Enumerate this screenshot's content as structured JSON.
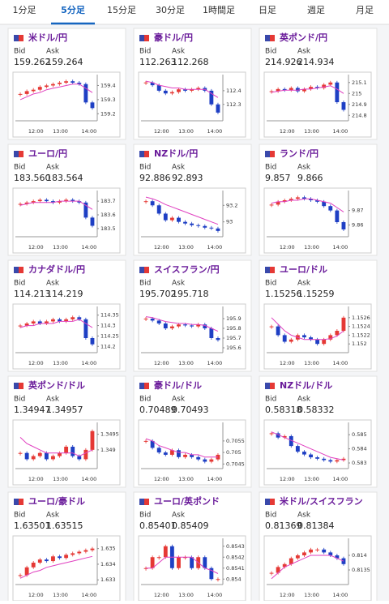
{
  "tabs": [
    "1分足",
    "5分足",
    "15分足",
    "30分足",
    "1時間足",
    "日足",
    "週足",
    "月足"
  ],
  "bid_label": "Bid",
  "ask_label": "Ask",
  "xticks": [
    "12:00",
    "13:00",
    "14:00"
  ],
  "candle_colors": {
    "up": "#e53935",
    "down": "#1e3fc4"
  },
  "pairs": [
    {
      "title": "米ドル/円",
      "bid": "159.262",
      "ask": "159.264",
      "chart": {
        "type": "candlestick",
        "ylim": [
          159.15,
          159.46
        ],
        "yticks": [
          159.4,
          159.3,
          159.2
        ],
        "values": [
          159.34,
          159.36,
          159.37,
          159.39,
          159.4,
          159.41,
          159.42,
          159.43,
          159.42,
          159.41,
          159.28,
          159.24
        ],
        "average": {
          "color": "#e040c0",
          "values": [
            159.3,
            159.32,
            159.34,
            159.35,
            159.37,
            159.38,
            159.39,
            159.4,
            159.41,
            159.41,
            159.38,
            159.35
          ]
        }
      }
    },
    {
      "title": "豪ドル/円",
      "bid": "112.263",
      "ask": "112.268",
      "chart": {
        "type": "candlestick",
        "ylim": [
          112.18,
          112.5
        ],
        "yticks": [
          112.4,
          112.3
        ],
        "values": [
          112.46,
          112.44,
          112.4,
          112.38,
          112.39,
          112.41,
          112.4,
          112.41,
          112.42,
          112.4,
          112.3,
          112.24
        ],
        "average": {
          "color": "#e040c0",
          "values": [
            112.47,
            112.46,
            112.44,
            112.43,
            112.42,
            112.42,
            112.41,
            112.41,
            112.41,
            112.41,
            112.38,
            112.35
          ]
        }
      }
    },
    {
      "title": "英ポンド/円",
      "bid": "214.926",
      "ask": "214.934",
      "chart": {
        "type": "candlestick",
        "ylim": [
          214.75,
          215.15
        ],
        "yticks": [
          215.1,
          215,
          214.9,
          214.8
        ],
        "values": [
          215.02,
          215.04,
          215.03,
          215.05,
          215.02,
          215.04,
          215.06,
          215.05,
          215.08,
          215.1,
          214.92,
          214.85
        ],
        "average": {
          "color": "#e040c0",
          "values": [
            215.01,
            215.02,
            215.03,
            215.03,
            215.03,
            215.04,
            215.04,
            215.05,
            215.06,
            215.07,
            215.04,
            215.0
          ]
        }
      }
    },
    {
      "title": "ユーロ/円",
      "bid": "183.560",
      "ask": "183.564",
      "chart": {
        "type": "candlestick",
        "ylim": [
          183.44,
          183.76
        ],
        "yticks": [
          183.7,
          183.6,
          183.5
        ],
        "values": [
          183.68,
          183.69,
          183.7,
          183.71,
          183.7,
          183.69,
          183.7,
          183.71,
          183.7,
          183.69,
          183.58,
          183.52
        ],
        "average": {
          "color": "#e040c0",
          "values": [
            183.67,
            183.68,
            183.69,
            183.69,
            183.69,
            183.69,
            183.7,
            183.7,
            183.7,
            183.7,
            183.67,
            183.64
          ]
        }
      }
    },
    {
      "title": "NZドル/円",
      "bid": "92.886",
      "ask": "92.893",
      "chart": {
        "type": "candlestick",
        "ylim": [
          92.82,
          93.35
        ],
        "yticks": [
          93.2,
          93
        ],
        "values": [
          93.25,
          93.2,
          93.1,
          93.02,
          93.05,
          93.0,
          92.98,
          92.96,
          92.95,
          92.93,
          92.92,
          92.89
        ],
        "average": {
          "color": "#e040c0",
          "values": [
            93.3,
            93.28,
            93.25,
            93.21,
            93.18,
            93.15,
            93.12,
            93.09,
            93.06,
            93.03,
            93.0,
            92.97
          ]
        }
      }
    },
    {
      "title": "ランド/円",
      "bid": "9.857",
      "ask": "9.866",
      "chart": {
        "type": "candlestick",
        "ylim": [
          9.852,
          9.882
        ],
        "yticks": [
          9.87,
          9.86
        ],
        "values": [
          9.874,
          9.876,
          9.877,
          9.878,
          9.879,
          9.878,
          9.877,
          9.876,
          9.873,
          9.87,
          9.862,
          9.857
        ],
        "average": {
          "color": "#e040c0",
          "values": [
            9.875,
            9.876,
            9.876,
            9.877,
            9.877,
            9.878,
            9.878,
            9.877,
            9.876,
            9.875,
            9.872,
            9.869
          ]
        }
      }
    },
    {
      "title": "カナダドル/円",
      "bid": "114.213",
      "ask": "114.219",
      "chart": {
        "type": "candlestick",
        "ylim": [
          114.17,
          114.38
        ],
        "yticks": [
          114.35,
          114.3,
          114.25,
          114.2
        ],
        "values": [
          114.3,
          114.31,
          114.32,
          114.31,
          114.32,
          114.33,
          114.32,
          114.33,
          114.34,
          114.33,
          114.24,
          114.21
        ],
        "average": {
          "color": "#e040c0",
          "values": [
            114.29,
            114.3,
            114.3,
            114.31,
            114.31,
            114.31,
            114.32,
            114.32,
            114.32,
            114.33,
            114.31,
            114.29
          ]
        }
      }
    },
    {
      "title": "スイスフラン/円",
      "bid": "195.702",
      "ask": "195.718",
      "chart": {
        "type": "candlestick",
        "ylim": [
          195.55,
          196.0
        ],
        "yticks": [
          195.9,
          195.8,
          195.7,
          195.6
        ],
        "values": [
          195.9,
          195.88,
          195.85,
          195.8,
          195.82,
          195.84,
          195.83,
          195.82,
          195.84,
          195.8,
          195.7,
          195.68
        ],
        "average": {
          "color": "#e040c0",
          "values": [
            195.92,
            195.91,
            195.89,
            195.87,
            195.86,
            195.85,
            195.85,
            195.84,
            195.84,
            195.83,
            195.8,
            195.77
          ]
        }
      }
    },
    {
      "title": "ユーロ/ドル",
      "bid": "1.15256",
      "ask": "1.15259",
      "chart": {
        "type": "candlestick",
        "ylim": [
          1.1518,
          1.1528
        ],
        "yticks": [
          1.1526,
          1.1524,
          1.1522,
          1.152
        ],
        "values": [
          1.1524,
          1.1522,
          1.15205,
          1.1521,
          1.1522,
          1.15215,
          1.1521,
          1.152,
          1.1521,
          1.1522,
          1.1523,
          1.1526
        ],
        "average": {
          "color": "#e040c0",
          "values": [
            1.1526,
            1.15245,
            1.1523,
            1.1522,
            1.15215,
            1.1521,
            1.1521,
            1.1521,
            1.1521,
            1.15212,
            1.15218,
            1.1523
          ]
        }
      }
    },
    {
      "title": "英ポンド/ドル",
      "bid": "1.34947",
      "ask": "1.34957",
      "chart": {
        "type": "candlestick",
        "ylim": [
          1.3484,
          1.3498
        ],
        "yticks": [
          1.3495,
          1.349
        ],
        "values": [
          1.3489,
          1.3487,
          1.3488,
          1.3489,
          1.3487,
          1.3488,
          1.3489,
          1.3491,
          1.3488,
          1.3487,
          1.349,
          1.3496
        ],
        "average": {
          "color": "#e040c0",
          "values": [
            1.3494,
            1.3492,
            1.3491,
            1.349,
            1.3489,
            1.3489,
            1.3489,
            1.3489,
            1.3489,
            1.3488,
            1.3489,
            1.349
          ]
        }
      }
    },
    {
      "title": "豪ドル/ドル",
      "bid": "0.70489",
      "ask": "0.70493",
      "chart": {
        "type": "candlestick",
        "ylim": [
          0.7043,
          0.7062
        ],
        "yticks": [
          0.7055,
          0.705,
          0.7045
        ],
        "values": [
          0.7055,
          0.7052,
          0.705,
          0.7049,
          0.7051,
          0.7048,
          0.7049,
          0.7048,
          0.7047,
          0.7046,
          0.7047,
          0.7049
        ],
        "average": {
          "color": "#e040c0",
          "values": [
            0.7056,
            0.7055,
            0.7053,
            0.7052,
            0.7051,
            0.705,
            0.705,
            0.7049,
            0.7049,
            0.7048,
            0.7048,
            0.7048
          ]
        }
      }
    },
    {
      "title": "NZドル/ドル",
      "bid": "0.58318",
      "ask": "0.58332",
      "chart": {
        "type": "candlestick",
        "ylim": [
          0.5826,
          0.5857
        ],
        "yticks": [
          0.585,
          0.584,
          0.583
        ],
        "values": [
          0.5851,
          0.5848,
          0.5849,
          0.5842,
          0.5838,
          0.5836,
          0.5834,
          0.5833,
          0.5832,
          0.5831,
          0.5832,
          0.5833
        ],
        "average": {
          "color": "#e040c0",
          "values": [
            0.5852,
            0.585,
            0.5848,
            0.5846,
            0.5844,
            0.5842,
            0.584,
            0.5838,
            0.5836,
            0.5834,
            0.5833,
            0.5832
          ]
        }
      }
    },
    {
      "title": "ユーロ/豪ドル",
      "bid": "1.63501",
      "ask": "1.63515",
      "chart": {
        "type": "candlestick",
        "ylim": [
          1.6327,
          1.6355
        ],
        "yticks": [
          1.635,
          1.634,
          1.633
        ],
        "values": [
          1.6333,
          1.6338,
          1.6341,
          1.6343,
          1.6342,
          1.6345,
          1.6344,
          1.6346,
          1.6347,
          1.6348,
          1.6349,
          1.635
        ],
        "average": {
          "color": "#e040c0",
          "values": [
            1.6331,
            1.6333,
            1.6335,
            1.6336,
            1.6338,
            1.6339,
            1.634,
            1.6341,
            1.6342,
            1.6343,
            1.6344,
            1.6345
          ]
        }
      }
    },
    {
      "title": "ユーロ/英ポンド",
      "bid": "0.85401",
      "ask": "0.85409",
      "chart": {
        "type": "candlestick",
        "ylim": [
          0.85395,
          0.85435
        ],
        "yticks": [
          0.8543,
          0.8542,
          0.8541,
          0.854
        ],
        "values": [
          0.8541,
          0.8542,
          0.8542,
          0.8543,
          0.8541,
          0.8542,
          0.8542,
          0.8541,
          0.8542,
          0.8541,
          0.854,
          0.854
        ],
        "average": {
          "color": "#e040c0",
          "values": [
            0.8541,
            0.8541,
            0.85415,
            0.8542,
            0.8542,
            0.8542,
            0.8542,
            0.8542,
            0.85415,
            0.8541,
            0.85408,
            0.85405
          ]
        }
      }
    },
    {
      "title": "米ドル/スイスフラン",
      "bid": "0.81369",
      "ask": "0.81384",
      "chart": {
        "type": "candlestick",
        "ylim": [
          0.813,
          0.8145
        ],
        "yticks": [
          0.814,
          0.8135
        ],
        "values": [
          0.8134,
          0.8136,
          0.8137,
          0.8139,
          0.814,
          0.8141,
          0.8142,
          0.8142,
          0.8141,
          0.814,
          0.8139,
          0.8137
        ],
        "average": {
          "color": "#e040c0",
          "values": [
            0.8132,
            0.8134,
            0.8136,
            0.8137,
            0.8138,
            0.8139,
            0.814,
            0.814,
            0.814,
            0.814,
            0.8139,
            0.8138
          ]
        }
      }
    }
  ]
}
